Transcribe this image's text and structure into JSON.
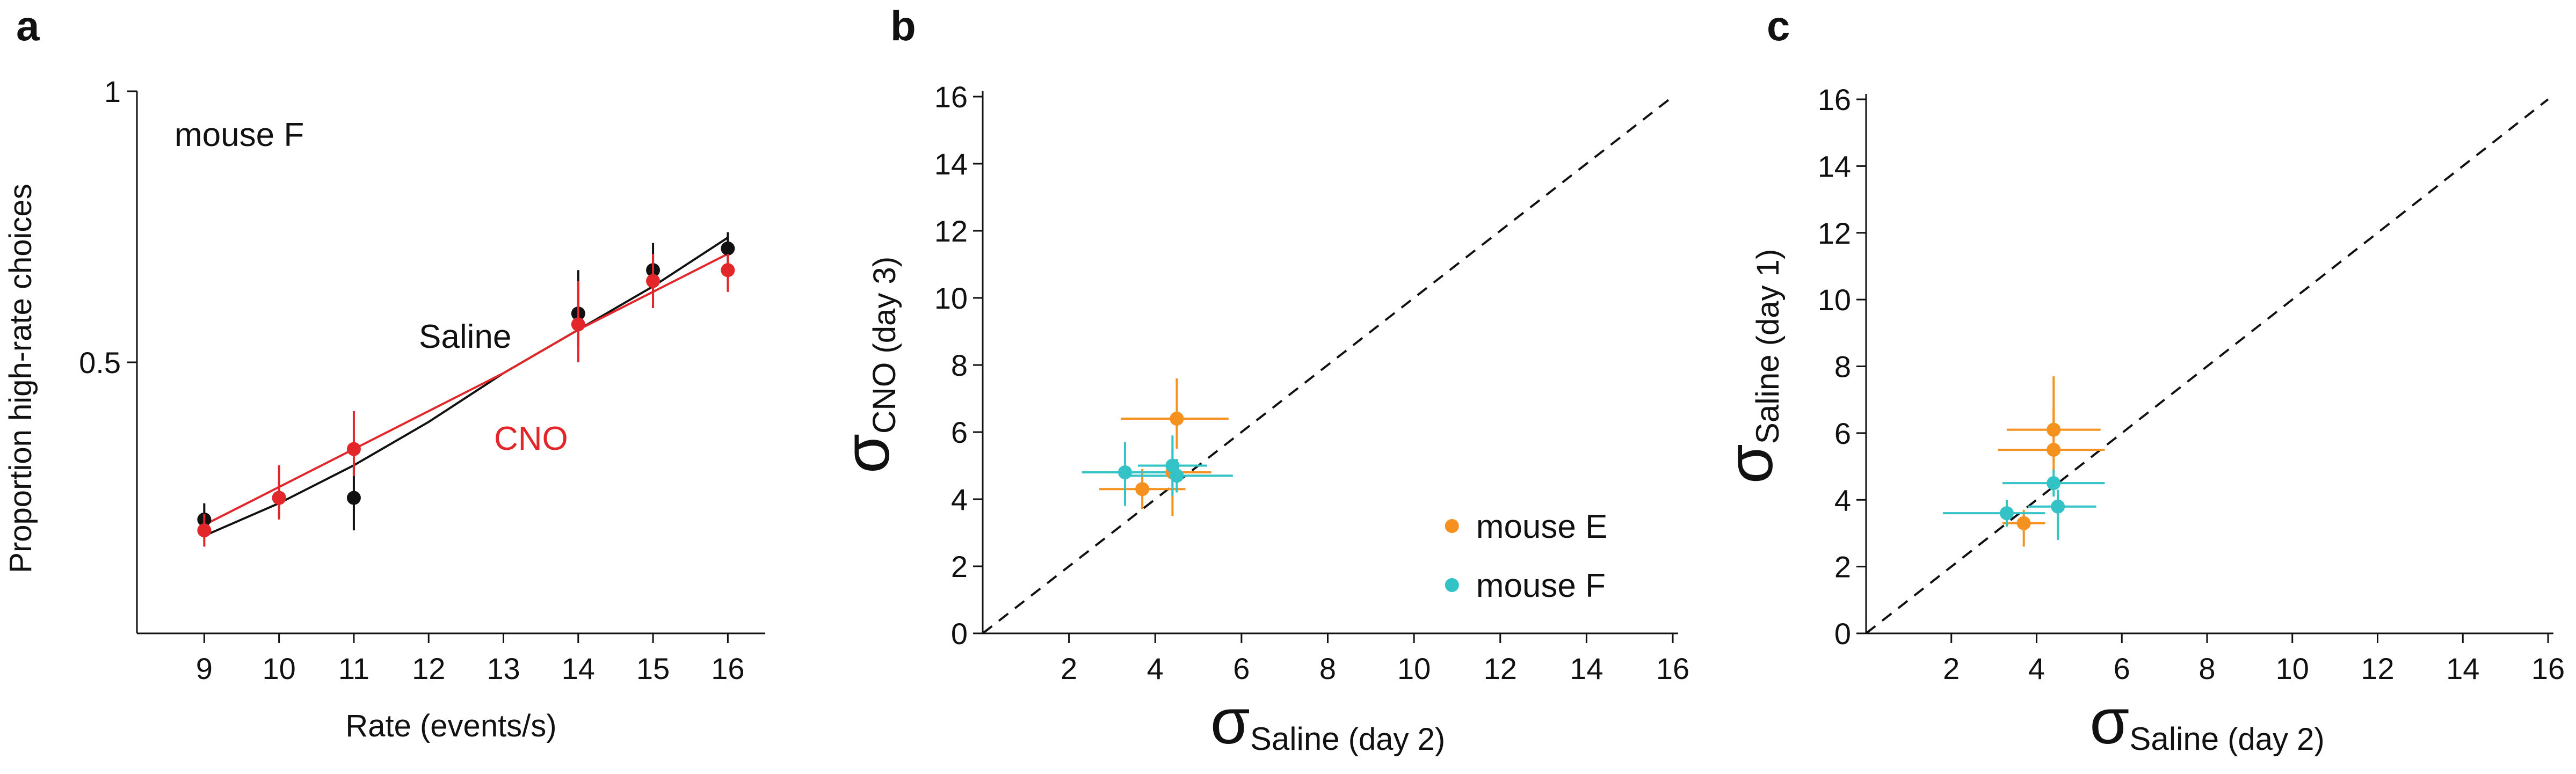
{
  "chart_data": [
    {
      "panel": "a",
      "type": "scatter",
      "title": "",
      "xlabel": "Rate (events/s)",
      "ylabel": "Proportion high-rate choices",
      "xlim": [
        8.1,
        16.5
      ],
      "ylim": [
        0,
        1
      ],
      "xticks": [
        9,
        10,
        11,
        12,
        13,
        14,
        15,
        16
      ],
      "yticks": [
        0.5,
        1
      ],
      "ytick_labels": [
        "0.5",
        "1"
      ],
      "annotations": [
        {
          "text": "mouse F",
          "color": "#111111"
        },
        {
          "text": "Saline",
          "color": "#111111"
        },
        {
          "text": "CNO",
          "color": "#e3262a"
        }
      ],
      "series": [
        {
          "name": "Saline",
          "color": "#111111",
          "points": [
            {
              "x": 9,
              "y": 0.21,
              "lo": 0.18,
              "hi": 0.24
            },
            {
              "x": 10,
              "y": 0.25,
              "lo": 0.22,
              "hi": 0.28
            },
            {
              "x": 11,
              "y": 0.25,
              "lo": 0.19,
              "hi": 0.31
            },
            {
              "x": 14,
              "y": 0.59,
              "lo": 0.53,
              "hi": 0.67
            },
            {
              "x": 15,
              "y": 0.67,
              "lo": 0.63,
              "hi": 0.72
            },
            {
              "x": 16,
              "y": 0.71,
              "lo": 0.68,
              "hi": 0.74
            }
          ],
          "fit": [
            [
              9,
              0.18
            ],
            [
              10,
              0.24
            ],
            [
              11,
              0.31
            ],
            [
              12,
              0.39
            ],
            [
              13,
              0.48
            ],
            [
              14,
              0.56
            ],
            [
              15,
              0.64
            ],
            [
              16,
              0.73
            ]
          ]
        },
        {
          "name": "CNO",
          "color": "#e3262a",
          "points": [
            {
              "x": 9,
              "y": 0.19,
              "lo": 0.16,
              "hi": 0.22
            },
            {
              "x": 10,
              "y": 0.25,
              "lo": 0.21,
              "hi": 0.31
            },
            {
              "x": 11,
              "y": 0.34,
              "lo": 0.29,
              "hi": 0.41
            },
            {
              "x": 14,
              "y": 0.57,
              "lo": 0.5,
              "hi": 0.65
            },
            {
              "x": 15,
              "y": 0.65,
              "lo": 0.6,
              "hi": 0.7
            },
            {
              "x": 16,
              "y": 0.67,
              "lo": 0.63,
              "hi": 0.7
            }
          ],
          "fit": [
            [
              9,
              0.2
            ],
            [
              10,
              0.27
            ],
            [
              11,
              0.34
            ],
            [
              12,
              0.41
            ],
            [
              13,
              0.48
            ],
            [
              14,
              0.56
            ],
            [
              15,
              0.63
            ],
            [
              16,
              0.7
            ]
          ]
        }
      ]
    },
    {
      "panel": "b",
      "type": "scatter",
      "title": "",
      "xlabel": "σSaline (day 2)",
      "xlabel_symbol": "σ",
      "xlabel_sub": "Saline",
      "xlabel_rest": " (day 2)",
      "ylabel": "σCNO (day 3)",
      "ylabel_symbol": "σ",
      "ylabel_sub": "CNO",
      "ylabel_rest": " (day 3)",
      "xlim": [
        0,
        16
      ],
      "ylim": [
        0,
        16
      ],
      "xticks": [
        2,
        4,
        6,
        8,
        10,
        12,
        14,
        16
      ],
      "yticks": [
        0,
        2,
        4,
        6,
        8,
        10,
        12,
        14,
        16
      ],
      "identity_line": true,
      "legend": {
        "placement": "bottom-right",
        "entries": [
          {
            "name": "mouse E",
            "color": "#f5911e"
          },
          {
            "name": "mouse F",
            "color": "#33c3c6"
          }
        ]
      },
      "series": [
        {
          "name": "mouse E",
          "color": "#f5911e",
          "points": [
            {
              "x": 4.5,
              "y": 6.4,
              "xerr": [
                3.2,
                5.7
              ],
              "yerr": [
                5.5,
                7.6
              ]
            },
            {
              "x": 3.7,
              "y": 4.3,
              "xerr": [
                2.7,
                4.7
              ],
              "yerr": [
                3.7,
                4.9
              ]
            },
            {
              "x": 4.4,
              "y": 4.8,
              "xerr": [
                3.5,
                5.3
              ],
              "yerr": [
                3.5,
                5.5
              ]
            }
          ]
        },
        {
          "name": "mouse F",
          "color": "#33c3c6",
          "points": [
            {
              "x": 3.3,
              "y": 4.8,
              "xerr": [
                2.3,
                4.5
              ],
              "yerr": [
                3.8,
                5.7
              ]
            },
            {
              "x": 4.4,
              "y": 5.0,
              "xerr": [
                3.6,
                5.2
              ],
              "yerr": [
                4.1,
                5.9
              ]
            },
            {
              "x": 4.5,
              "y": 4.7,
              "xerr": [
                3.2,
                5.8
              ],
              "yerr": [
                4.2,
                5.2
              ]
            }
          ]
        }
      ]
    },
    {
      "panel": "c",
      "type": "scatter",
      "title": "",
      "xlabel": "σSaline (day 2)",
      "xlabel_symbol": "σ",
      "xlabel_sub": "Saline",
      "xlabel_rest": " (day 2)",
      "ylabel": "σSaline (day 1)",
      "ylabel_symbol": "σ",
      "ylabel_sub": "Saline",
      "ylabel_rest": " (day 1)",
      "xlim": [
        0,
        16
      ],
      "ylim": [
        0,
        16
      ],
      "xticks": [
        2,
        4,
        6,
        8,
        10,
        12,
        14,
        16
      ],
      "yticks": [
        0,
        2,
        4,
        6,
        8,
        10,
        12,
        14,
        16
      ],
      "identity_line": true,
      "series": [
        {
          "name": "mouse E",
          "color": "#f5911e",
          "points": [
            {
              "x": 4.4,
              "y": 6.1,
              "xerr": [
                3.3,
                5.5
              ],
              "yerr": [
                5.3,
                7.7
              ]
            },
            {
              "x": 4.4,
              "y": 5.5,
              "xerr": [
                3.1,
                5.6
              ],
              "yerr": [
                4.8,
                6.7
              ]
            },
            {
              "x": 3.7,
              "y": 3.3,
              "xerr": [
                3.2,
                4.2
              ],
              "yerr": [
                2.6,
                3.7
              ]
            }
          ]
        },
        {
          "name": "mouse F",
          "color": "#33c3c6",
          "points": [
            {
              "x": 3.3,
              "y": 3.6,
              "xerr": [
                1.8,
                4.2
              ],
              "yerr": [
                3.2,
                4.0
              ]
            },
            {
              "x": 4.4,
              "y": 4.5,
              "xerr": [
                3.2,
                5.6
              ],
              "yerr": [
                4.1,
                4.9
              ]
            },
            {
              "x": 4.5,
              "y": 3.8,
              "xerr": [
                3.8,
                5.4
              ],
              "yerr": [
                2.8,
                4.3
              ]
            }
          ]
        }
      ]
    }
  ]
}
